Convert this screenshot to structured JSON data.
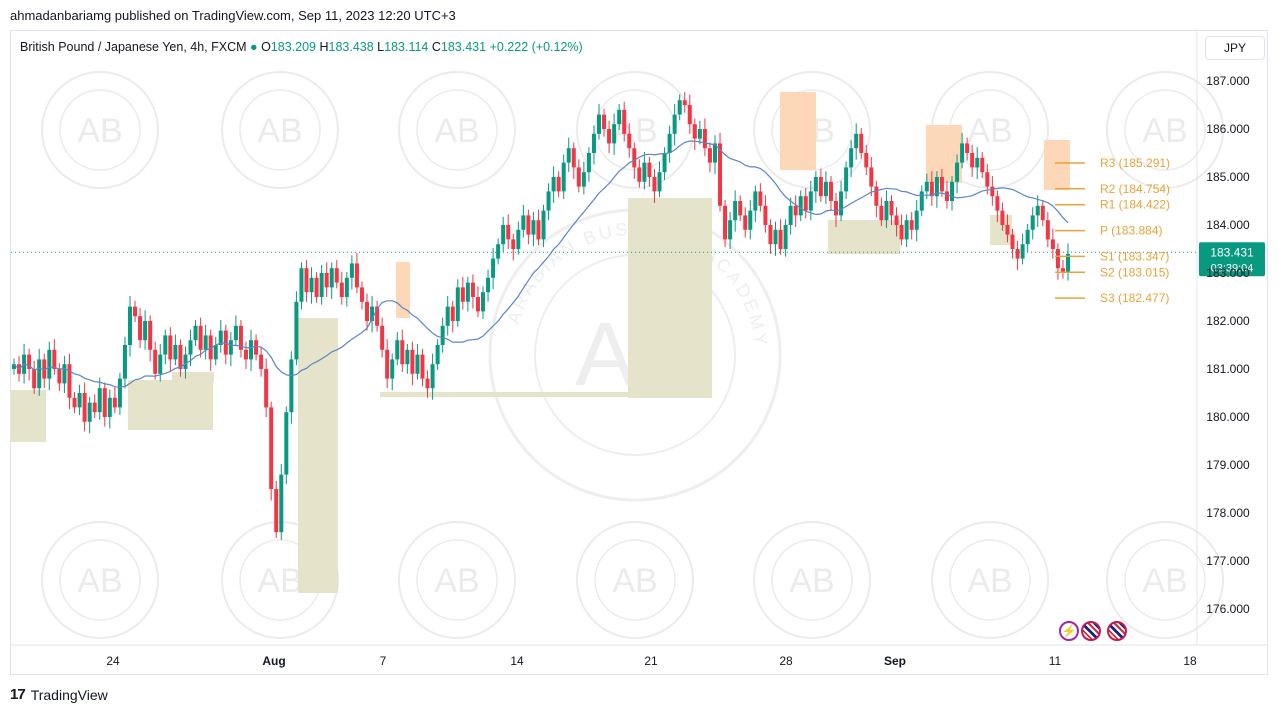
{
  "publish_line": "ahmadanbariamg published on TradingView.com, Sep 11, 2023 12:20 UTC+3",
  "legend": {
    "symbol": "British Pound / Japanese Yen, 4h, FXCM",
    "open_label": "O",
    "open": "183.209",
    "high_label": "H",
    "high": "183.438",
    "low_label": "L",
    "low": "183.114",
    "close_label": "C",
    "close": "183.431",
    "change": "+0.222 (+0.12%)"
  },
  "currency": "JPY",
  "price_tag": {
    "price": "183.431",
    "countdown": "03:39:04"
  },
  "footer": {
    "logo": "17",
    "brand": "TradingView"
  },
  "colors": {
    "up": "#089981",
    "down": "#f23645",
    "ma": "#5b86c5",
    "pivot": "#e8a33b",
    "zone_supply": "#fdd8b8",
    "zone_demand": "#e5e3c9"
  },
  "watermark_text": "ARABIAN BUSINESS ACADEMY",
  "watermark_logo": "AB",
  "chart_data": {
    "type": "candlestick",
    "ylim": [
      175.3,
      187.4
    ],
    "yticks": [
      "187.000",
      "186.000",
      "185.000",
      "184.000",
      "183.000",
      "182.000",
      "181.000",
      "180.000",
      "179.000",
      "178.000",
      "177.000",
      "176.000"
    ],
    "xticks": [
      "24",
      "Aug",
      "7",
      "14",
      "21",
      "28",
      "Sep",
      "11",
      "18"
    ],
    "pivots": [
      {
        "label": "R3 (185.291)",
        "value": 185.291
      },
      {
        "label": "R2 (184.754)",
        "value": 184.754
      },
      {
        "label": "R1 (184.422)",
        "value": 184.422
      },
      {
        "label": "P (183.884)",
        "value": 183.884
      },
      {
        "label": "S1 (183.347)",
        "value": 183.347
      },
      {
        "label": "S2 (183.015)",
        "value": 183.015
      },
      {
        "label": "S3 (182.477)",
        "value": 182.477
      }
    ],
    "closes": [
      181.1,
      180.9,
      181.3,
      181.0,
      180.6,
      181.2,
      180.8,
      181.4,
      181.0,
      180.7,
      181.1,
      180.4,
      180.2,
      180.5,
      179.9,
      180.3,
      180.1,
      180.6,
      180.0,
      180.4,
      180.2,
      180.8,
      181.5,
      182.3,
      182.1,
      181.6,
      182.0,
      181.4,
      180.9,
      181.3,
      181.7,
      181.2,
      181.5,
      181.0,
      181.3,
      181.6,
      181.9,
      181.4,
      181.7,
      181.2,
      181.5,
      181.8,
      181.3,
      181.6,
      181.9,
      181.4,
      181.2,
      181.6,
      181.3,
      181.0,
      180.2,
      178.5,
      177.6,
      178.8,
      180.1,
      181.2,
      182.4,
      183.1,
      182.6,
      182.9,
      182.5,
      183.0,
      182.7,
      183.1,
      182.8,
      182.5,
      182.9,
      183.2,
      182.7,
      182.4,
      182.0,
      182.3,
      181.9,
      181.4,
      180.8,
      181.2,
      181.6,
      181.1,
      181.4,
      180.9,
      181.3,
      180.8,
      180.6,
      181.1,
      181.5,
      181.9,
      182.3,
      182.0,
      182.7,
      182.4,
      182.8,
      182.5,
      182.2,
      182.6,
      182.9,
      183.3,
      183.6,
      184.0,
      183.7,
      183.5,
      183.9,
      184.2,
      183.8,
      184.1,
      183.7,
      184.3,
      184.7,
      185.0,
      184.7,
      185.3,
      185.6,
      185.2,
      184.8,
      185.1,
      185.5,
      185.9,
      186.3,
      186.0,
      185.7,
      186.1,
      186.4,
      185.9,
      185.6,
      185.2,
      184.9,
      185.3,
      185.0,
      184.7,
      185.1,
      185.5,
      185.9,
      186.3,
      186.6,
      186.5,
      186.1,
      185.8,
      186.0,
      185.6,
      185.3,
      185.7,
      184.4,
      183.7,
      184.1,
      184.5,
      184.2,
      183.9,
      184.3,
      184.7,
      184.4,
      184.0,
      183.6,
      183.9,
      183.5,
      184.0,
      184.4,
      184.2,
      184.6,
      184.3,
      184.7,
      185.0,
      184.6,
      184.9,
      184.5,
      184.2,
      184.7,
      185.2,
      185.6,
      185.9,
      185.5,
      185.2,
      184.8,
      184.4,
      184.1,
      184.5,
      184.2,
      184.0,
      183.7,
      184.1,
      183.9,
      184.3,
      184.7,
      184.9,
      184.6,
      185.0,
      184.7,
      184.5,
      184.9,
      185.3,
      185.7,
      185.5,
      185.2,
      185.4,
      185.1,
      184.8,
      184.6,
      184.3,
      184.0,
      183.8,
      183.5,
      183.3,
      183.6,
      183.9,
      184.2,
      184.4,
      184.1,
      183.7,
      183.5,
      183.1,
      183.0,
      183.4
    ]
  }
}
